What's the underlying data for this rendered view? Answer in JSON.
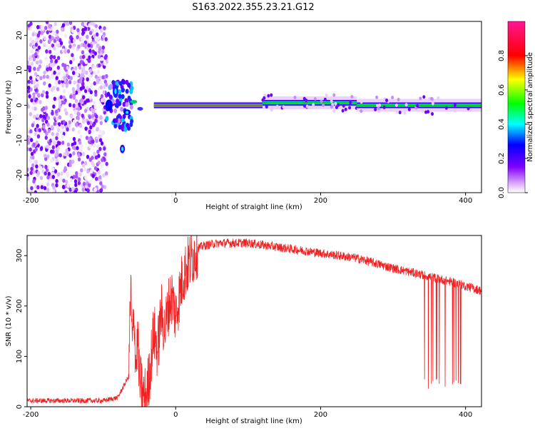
{
  "title": "S163.2022.355.23.21.G12",
  "chart_data": [
    {
      "type": "heatmap",
      "xlabel": "Height of straight line (km)",
      "ylabel": "Frequency (Hz)",
      "xlim": [
        -205,
        422
      ],
      "ylim": [
        -25,
        24
      ],
      "x_ticks": [
        "-200",
        "0",
        "200",
        "400"
      ],
      "y_ticks": [
        "20",
        "10",
        "0",
        "-10",
        "-20"
      ],
      "colorbar": {
        "label": "Normalized spectral amplitude",
        "range": [
          0,
          1
        ],
        "ticks": [
          "0.0",
          "0.2",
          "0.4",
          "0.6",
          "0.8"
        ],
        "colors": [
          "#ffffff",
          "#8000ff",
          "#0000ff",
          "#00ffff",
          "#00ff00",
          "#ffff00",
          "#ff0000",
          "#ff00ff"
        ]
      },
      "series": [
        {
          "x": [
            -205,
            -95
          ],
          "y_center": 0,
          "amplitude": 0.15,
          "kind": "noise"
        },
        {
          "x": [
            -95,
            -60
          ],
          "y_center": 0,
          "amplitude": 0.5,
          "kind": "scatter-burst"
        },
        {
          "x": [
            -75,
            -72
          ],
          "y_center": -12.5,
          "amplitude": 0.4,
          "kind": "spike"
        },
        {
          "x": [
            -30,
            120
          ],
          "y_center": 0,
          "amplitude": 0.75,
          "kind": "carrier"
        },
        {
          "x": [
            120,
            250
          ],
          "y_center": 0.7,
          "amplitude": 0.4,
          "kind": "carrier"
        },
        {
          "x": [
            250,
            422
          ],
          "y_center": 0,
          "amplitude": 0.4,
          "kind": "carrier"
        }
      ]
    },
    {
      "type": "line",
      "xlabel": "Height of straight line (km)",
      "ylabel": "SNR (10 * v/v)",
      "xlim": [
        -205,
        422
      ],
      "ylim": [
        0,
        340
      ],
      "x_ticks": [
        "-200",
        "0",
        "200",
        "400"
      ],
      "y_ticks": [
        "300",
        "200",
        "100",
        "0"
      ],
      "color": "#ee2222",
      "series": [
        {
          "x": [
            -205,
            -100,
            -80,
            -65,
            -62,
            -60,
            -57,
            -55,
            -52,
            -50,
            -47,
            -45,
            -40,
            -35,
            -30,
            -25,
            -20,
            -15,
            -10,
            -5,
            0,
            10,
            20,
            30,
            40,
            60,
            100,
            150,
            200,
            250,
            300,
            340,
            360,
            380,
            400,
            422
          ],
          "y": [
            12,
            12,
            18,
            60,
            240,
            120,
            180,
            80,
            140,
            50,
            40,
            20,
            25,
            80,
            150,
            110,
            190,
            150,
            200,
            220,
            180,
            260,
            290,
            315,
            320,
            325,
            325,
            315,
            305,
            295,
            275,
            262,
            255,
            248,
            240,
            230
          ]
        }
      ],
      "dropouts": {
        "x_range": [
          338,
          400
        ],
        "min_y": 35
      }
    }
  ]
}
